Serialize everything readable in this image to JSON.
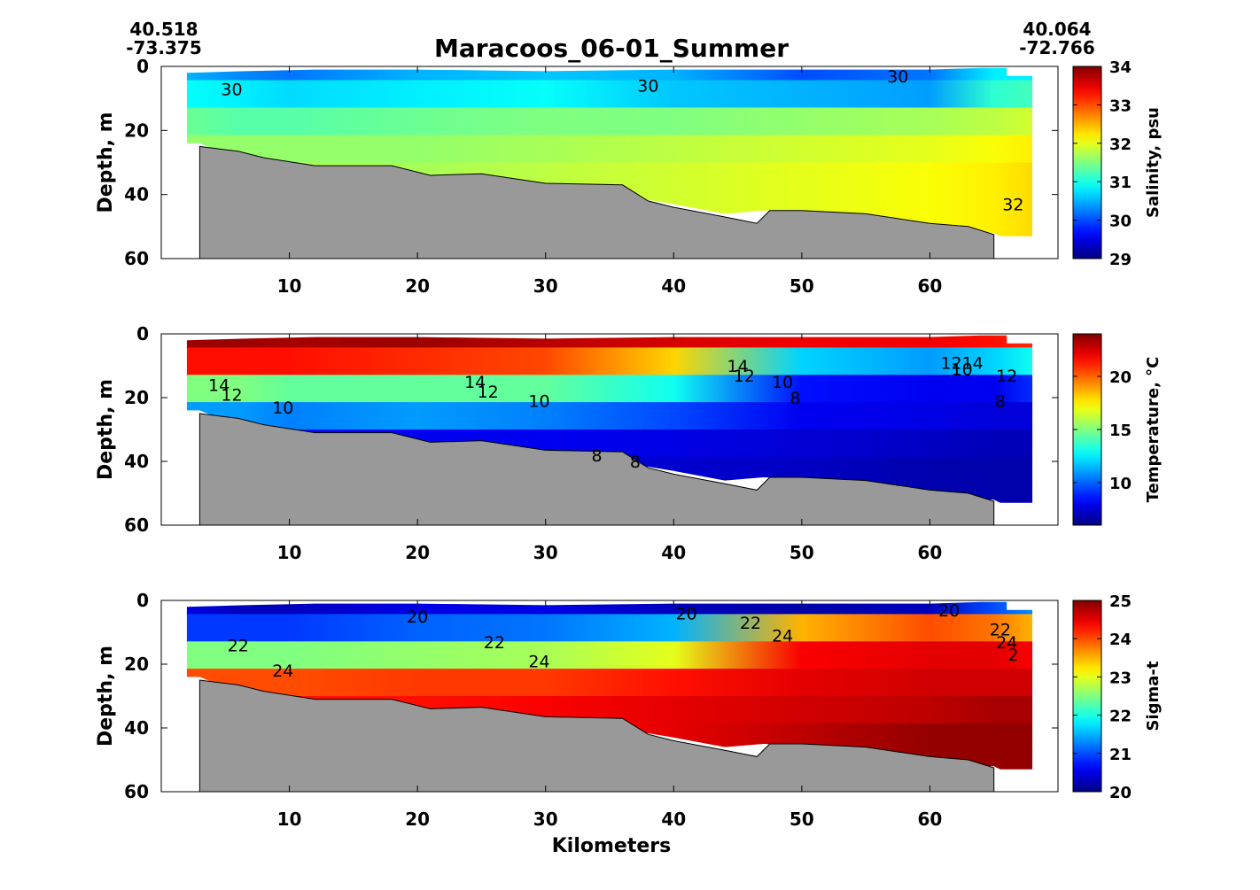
{
  "figure": {
    "title": "Maracoos_06-01_Summer",
    "start_lat": "40.518",
    "start_lon": "-73.375",
    "end_lat": "40.064",
    "end_lon": "-72.766",
    "xlabel": "Kilometers"
  },
  "chart_data": [
    {
      "type": "heatmap",
      "name": "salinity",
      "ylabel": "Depth, m",
      "colorbar_label": "Salinity, psu",
      "xlim": [
        0,
        70
      ],
      "ylim": [
        60,
        0
      ],
      "xticks": [
        10,
        20,
        30,
        40,
        50,
        60
      ],
      "yticks": [
        0,
        20,
        40,
        60
      ],
      "clim": [
        29,
        34
      ],
      "colorbar_ticks": [
        29,
        30,
        31,
        32,
        33,
        34
      ],
      "colormap": "jet",
      "bottom_fill_color": "#999999",
      "profile": {
        "km": [
          2,
          6,
          10,
          20,
          30,
          40,
          50,
          60,
          65,
          68
        ],
        "values": [
          [
            30.5,
            30.3,
            30.2,
            30.5,
            30.6,
            30.5,
            30.0,
            30.2,
            30.8,
            30.8
          ],
          [
            30.9,
            30.8,
            30.7,
            30.8,
            30.9,
            30.6,
            30.5,
            30.4,
            31.1,
            31.2
          ],
          [
            31.4,
            31.3,
            31.3,
            31.4,
            31.5,
            31.5,
            31.6,
            31.7,
            31.8,
            31.9
          ],
          [
            31.6,
            31.6,
            31.6,
            31.6,
            31.7,
            31.8,
            31.9,
            32.0,
            32.1,
            32.2
          ],
          [
            31.7,
            31.7,
            31.7,
            31.7,
            31.8,
            31.9,
            32.0,
            32.1,
            32.2,
            32.3
          ],
          [
            31.7,
            31.7,
            31.7,
            31.7,
            31.8,
            31.9,
            32.0,
            32.1,
            32.2,
            32.3
          ],
          [
            31.7,
            31.7,
            31.7,
            31.7,
            31.8,
            31.9,
            32.0,
            32.1,
            32.2,
            32.3
          ],
          [
            31.7,
            31.7,
            31.7,
            31.7,
            31.8,
            31.9,
            32.0,
            32.1,
            32.2,
            32.3
          ]
        ]
      },
      "contours": [
        {
          "label": "30",
          "km": 38,
          "depth": 6
        },
        {
          "label": "30",
          "km": 57.5,
          "depth": 3
        },
        {
          "label": "30",
          "km": 5.5,
          "depth": 7
        },
        {
          "label": "32",
          "km": 66.5,
          "depth": 43
        }
      ]
    },
    {
      "type": "heatmap",
      "name": "temperature",
      "ylabel": "Depth, m",
      "colorbar_label": "Temperature, °C",
      "xlim": [
        0,
        70
      ],
      "ylim": [
        60,
        0
      ],
      "xticks": [
        10,
        20,
        30,
        40,
        50,
        60
      ],
      "yticks": [
        0,
        20,
        40,
        60
      ],
      "clim": [
        6,
        24
      ],
      "colorbar_ticks": [
        10,
        15,
        20
      ],
      "colormap": "jet",
      "bottom_fill_color": "#999999",
      "profile": {
        "km": [
          2,
          6,
          10,
          20,
          30,
          40,
          50,
          60,
          65,
          68
        ],
        "values": [
          [
            23.5,
            23.5,
            23.3,
            23.5,
            23.0,
            22.5,
            22.0,
            22.0,
            21.5,
            21.0
          ],
          [
            21.5,
            21.5,
            21.5,
            21.0,
            20.5,
            18.0,
            12.0,
            11.0,
            12.0,
            13.0
          ],
          [
            15.0,
            15.0,
            14.5,
            14.5,
            14.5,
            13.0,
            8.5,
            8.0,
            8.0,
            9.0
          ],
          [
            11.0,
            11.0,
            10.5,
            11.0,
            10.5,
            9.5,
            8.0,
            7.8,
            7.6,
            7.6
          ],
          [
            8.5,
            8.5,
            8.5,
            8.0,
            8.0,
            7.8,
            7.5,
            7.2,
            7.0,
            7.0
          ],
          [
            8.0,
            8.0,
            8.0,
            7.6,
            7.6,
            7.4,
            7.2,
            6.8,
            6.8,
            6.8
          ],
          [
            8.0,
            8.0,
            8.0,
            7.6,
            7.6,
            7.4,
            7.2,
            6.8,
            6.8,
            6.8
          ],
          [
            8.0,
            8.0,
            8.0,
            7.6,
            7.6,
            7.4,
            7.2,
            6.8,
            6.8,
            6.8
          ]
        ]
      },
      "contours": [
        {
          "label": "14",
          "km": 4.5,
          "depth": 16
        },
        {
          "label": "12",
          "km": 5.5,
          "depth": 19
        },
        {
          "label": "10",
          "km": 9.5,
          "depth": 23
        },
        {
          "label": "14",
          "km": 24.5,
          "depth": 15
        },
        {
          "label": "12",
          "km": 25.5,
          "depth": 18
        },
        {
          "label": "10",
          "km": 29.5,
          "depth": 21
        },
        {
          "label": "14",
          "km": 45,
          "depth": 10
        },
        {
          "label": "12",
          "km": 45.5,
          "depth": 13
        },
        {
          "label": "10",
          "km": 48.5,
          "depth": 15
        },
        {
          "label": "8",
          "km": 49.5,
          "depth": 20
        },
        {
          "label": "8",
          "km": 34,
          "depth": 38
        },
        {
          "label": "8",
          "km": 37,
          "depth": 40
        },
        {
          "label": "1214",
          "km": 62.5,
          "depth": 9
        },
        {
          "label": "10",
          "km": 62.5,
          "depth": 11
        },
        {
          "label": "12",
          "km": 66,
          "depth": 13
        },
        {
          "label": "8",
          "km": 65.5,
          "depth": 21
        }
      ]
    },
    {
      "type": "heatmap",
      "name": "sigma-t",
      "ylabel": "Depth, m",
      "colorbar_label": "Sigma-t",
      "xlim": [
        0,
        70
      ],
      "ylim": [
        60,
        0
      ],
      "xticks": [
        10,
        20,
        30,
        40,
        50,
        60
      ],
      "yticks": [
        0,
        20,
        40,
        60
      ],
      "clim": [
        20,
        25
      ],
      "colorbar_ticks": [
        20,
        21,
        22,
        23,
        24,
        25
      ],
      "colormap": "jet",
      "bottom_fill_color": "#999999",
      "profile": {
        "km": [
          2,
          6,
          10,
          20,
          30,
          40,
          50,
          60,
          65,
          68
        ],
        "values": [
          [
            20.5,
            20.3,
            20.3,
            20.5,
            20.5,
            20.3,
            20.2,
            20.3,
            21.0,
            21.3
          ],
          [
            20.9,
            20.9,
            20.9,
            21.1,
            21.2,
            21.5,
            23.5,
            24.0,
            23.8,
            23.5
          ],
          [
            22.5,
            22.5,
            22.5,
            22.6,
            22.7,
            23.0,
            24.4,
            24.5,
            24.5,
            24.4
          ],
          [
            24.0,
            24.0,
            24.0,
            24.1,
            24.1,
            24.3,
            24.5,
            24.6,
            24.6,
            24.6
          ],
          [
            24.3,
            24.3,
            24.3,
            24.3,
            24.4,
            24.5,
            24.6,
            24.7,
            24.8,
            24.8
          ],
          [
            24.4,
            24.4,
            24.4,
            24.4,
            24.4,
            24.5,
            24.7,
            24.9,
            24.9,
            24.9
          ],
          [
            24.4,
            24.4,
            24.4,
            24.4,
            24.4,
            24.5,
            24.7,
            24.9,
            24.9,
            24.9
          ],
          [
            24.4,
            24.4,
            24.4,
            24.4,
            24.4,
            24.5,
            24.7,
            24.9,
            24.9,
            24.9
          ]
        ]
      },
      "contours": [
        {
          "label": "20",
          "km": 20,
          "depth": 5
        },
        {
          "label": "20",
          "km": 41,
          "depth": 4
        },
        {
          "label": "20",
          "km": 61.5,
          "depth": 3
        },
        {
          "label": "22",
          "km": 6,
          "depth": 14
        },
        {
          "label": "22",
          "km": 26,
          "depth": 13
        },
        {
          "label": "22",
          "km": 46,
          "depth": 7
        },
        {
          "label": "24",
          "km": 9.5,
          "depth": 22
        },
        {
          "label": "24",
          "km": 29.5,
          "depth": 19
        },
        {
          "label": "24",
          "km": 48.5,
          "depth": 11
        },
        {
          "label": "22",
          "km": 65.5,
          "depth": 9
        },
        {
          "label": "24",
          "km": 66,
          "depth": 13
        },
        {
          "label": "2",
          "km": 66.5,
          "depth": 17
        }
      ]
    }
  ],
  "section_shape": {
    "data_top": [
      [
        2,
        2
      ],
      [
        6.5,
        1.5
      ],
      [
        12,
        1
      ],
      [
        20,
        1
      ],
      [
        30,
        1.5
      ],
      [
        40,
        1
      ],
      [
        50,
        1
      ],
      [
        60,
        1
      ],
      [
        64,
        0.5
      ],
      [
        66,
        0.5
      ],
      [
        66,
        3
      ],
      [
        68,
        3
      ]
    ],
    "data_bottom": [
      [
        68,
        53
      ],
      [
        65.5,
        53
      ],
      [
        65,
        52
      ],
      [
        60,
        51
      ],
      [
        55,
        47
      ],
      [
        50,
        45.5
      ],
      [
        47,
        45
      ],
      [
        44,
        46
      ],
      [
        40,
        43
      ],
      [
        37,
        41
      ],
      [
        34,
        39
      ],
      [
        30,
        38
      ],
      [
        25,
        36.5
      ],
      [
        21,
        34
      ],
      [
        18,
        32
      ],
      [
        12,
        31
      ],
      [
        8,
        31
      ],
      [
        6,
        29
      ],
      [
        3,
        24
      ],
      [
        2,
        24
      ]
    ],
    "seafloor": [
      [
        3,
        25
      ],
      [
        6,
        26.5
      ],
      [
        8,
        28.5
      ],
      [
        12,
        31
      ],
      [
        18,
        31
      ],
      [
        21,
        34
      ],
      [
        25,
        33.5
      ],
      [
        30,
        36.5
      ],
      [
        36,
        37
      ],
      [
        38,
        42
      ],
      [
        40,
        44
      ],
      [
        44,
        47
      ],
      [
        46.5,
        49
      ],
      [
        47.5,
        45
      ],
      [
        50,
        45
      ],
      [
        55,
        46
      ],
      [
        60,
        49
      ],
      [
        63,
        50
      ],
      [
        65,
        52.5
      ],
      [
        65,
        60
      ],
      [
        3,
        60
      ]
    ]
  }
}
